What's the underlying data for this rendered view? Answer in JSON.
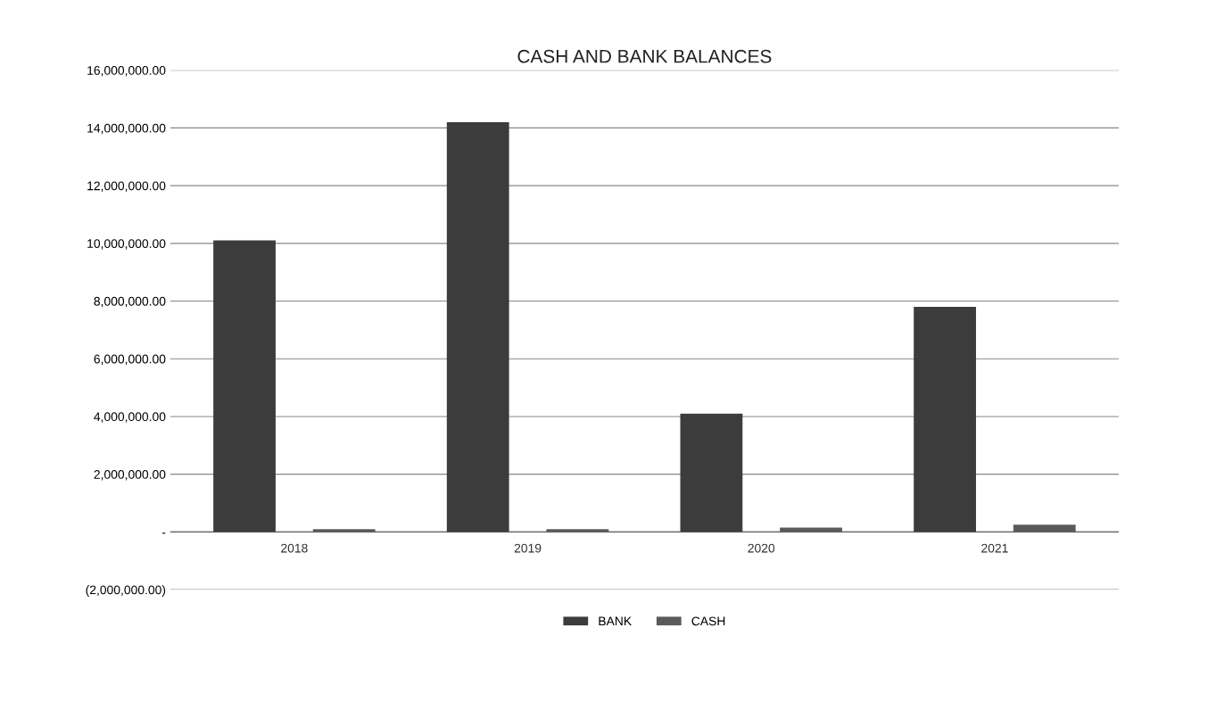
{
  "chart_data": {
    "type": "bar",
    "title": "CASH AND BANK BALANCES",
    "categories": [
      "2018",
      "2019",
      "2020",
      "2021"
    ],
    "series": [
      {
        "name": "BANK",
        "color": "#3c3c3c",
        "values": [
          10100000,
          14200000,
          4100000,
          7800000
        ]
      },
      {
        "name": "CASH",
        "color": "#5a5a5a",
        "values": [
          100000,
          100000,
          150000,
          250000
        ]
      }
    ],
    "ylim": [
      -2000000,
      16000000
    ],
    "yticks": [
      {
        "value": -2000000,
        "label": "(2,000,000.00)"
      },
      {
        "value": 0,
        "label": "-"
      },
      {
        "value": 2000000,
        "label": "2,000,000.00"
      },
      {
        "value": 4000000,
        "label": "4,000,000.00"
      },
      {
        "value": 6000000,
        "label": "6,000,000.00"
      },
      {
        "value": 8000000,
        "label": "8,000,000.00"
      },
      {
        "value": 10000000,
        "label": "10,000,000.00"
      },
      {
        "value": 12000000,
        "label": "12,000,000.00"
      },
      {
        "value": 14000000,
        "label": "14,000,000.00"
      },
      {
        "value": 16000000,
        "label": "16,000,000.00"
      }
    ],
    "grid": "y",
    "legend": "bottom"
  }
}
